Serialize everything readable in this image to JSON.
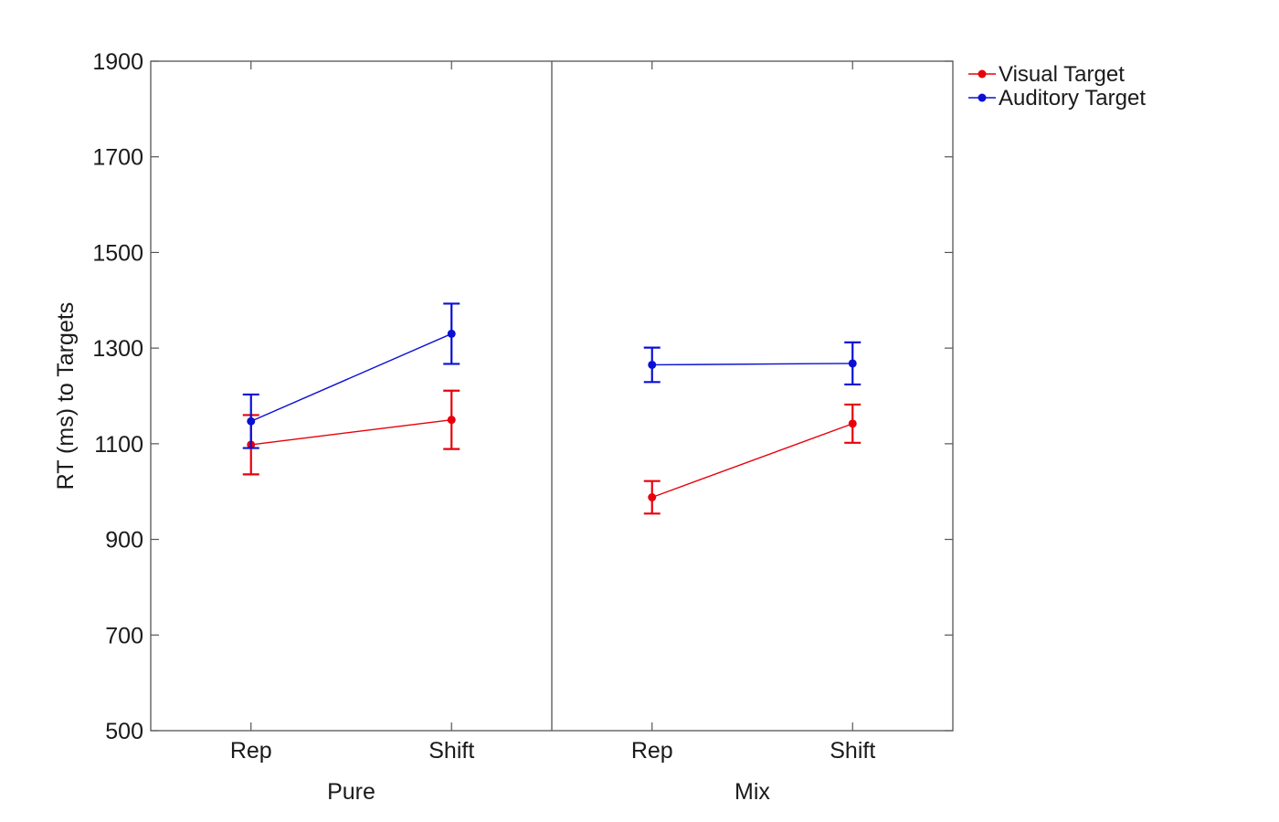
{
  "chart_data": {
    "type": "line",
    "ylabel": "RT (ms) to Targets",
    "ylim": [
      500,
      1900
    ],
    "yticks": [
      500,
      700,
      900,
      1100,
      1300,
      1500,
      1700,
      1900
    ],
    "grid": false,
    "legend_position": "top-right outside",
    "panels": [
      {
        "name": "Pure",
        "categories": [
          "Rep",
          "Shift"
        ],
        "series": [
          {
            "name": "Visual Target",
            "color": "#e8000b",
            "values": [
              1098,
              1150
            ],
            "error": [
              62,
              61
            ]
          },
          {
            "name": "Auditory Target",
            "color": "#0a10d4",
            "values": [
              1147,
              1330
            ],
            "error": [
              56,
              63
            ]
          }
        ]
      },
      {
        "name": "Mix",
        "categories": [
          "Rep",
          "Shift"
        ],
        "series": [
          {
            "name": "Visual Target",
            "color": "#e8000b",
            "values": [
              988,
              1142
            ],
            "error": [
              34,
              40
            ]
          },
          {
            "name": "Auditory Target",
            "color": "#0a10d4",
            "values": [
              1265,
              1268
            ],
            "error": [
              36,
              44
            ]
          }
        ]
      }
    ],
    "legend": [
      {
        "label": "Visual Target",
        "color": "#e8000b"
      },
      {
        "label": "Auditory Target",
        "color": "#0a10d4"
      }
    ]
  }
}
